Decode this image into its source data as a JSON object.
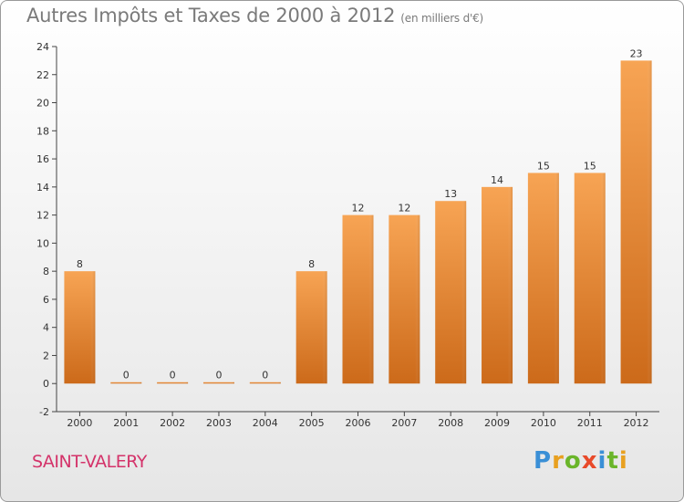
{
  "chart_data": {
    "type": "bar",
    "title": "Autres Impôts et Taxes de 2000 à 2012",
    "subtitle": "(en milliers d'€)",
    "categories": [
      "2000",
      "2001",
      "2002",
      "2003",
      "2004",
      "2005",
      "2006",
      "2007",
      "2008",
      "2009",
      "2010",
      "2011",
      "2012"
    ],
    "values": [
      8,
      0,
      0,
      0,
      0,
      8,
      12,
      12,
      13,
      14,
      15,
      15,
      23
    ],
    "ylim": [
      -2,
      24
    ],
    "yticks": [
      -2,
      0,
      2,
      4,
      6,
      8,
      10,
      12,
      14,
      16,
      18,
      20,
      22,
      24
    ],
    "grid": false,
    "bar_color_top": "#f7a454",
    "bar_color_bottom": "#cc6a1a"
  },
  "city": "SAINT-VALERY",
  "logo": {
    "letters": [
      "P",
      "r",
      "o",
      "x",
      "i",
      "t",
      "i"
    ],
    "colors": [
      "#3a8fd6",
      "#e8a020",
      "#6ab52a",
      "#e84a2a",
      "#3a8fd6",
      "#6ab52a",
      "#e8a020"
    ]
  }
}
